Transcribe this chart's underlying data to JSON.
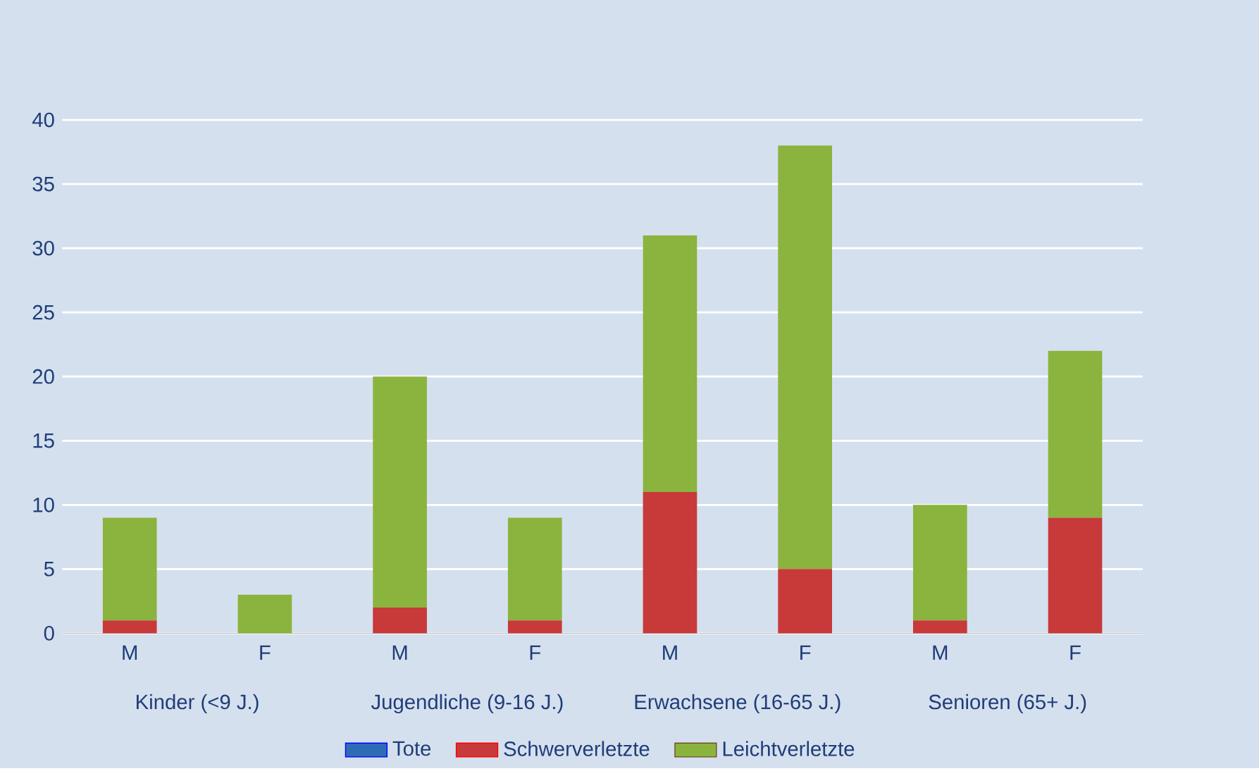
{
  "chart_data": {
    "type": "bar",
    "stacked": true,
    "categories": [
      "M",
      "F",
      "M",
      "F",
      "M",
      "F",
      "M",
      "F"
    ],
    "series": [
      {
        "name": "Tote",
        "color": "#2e6db5",
        "values": [
          0,
          0,
          0,
          0,
          0,
          0,
          0,
          0
        ]
      },
      {
        "name": "Schwerverletzte",
        "color": "#c8393a",
        "values": [
          1,
          0,
          2,
          1,
          11,
          5,
          1,
          9
        ]
      },
      {
        "name": "Leichtverletzte",
        "color": "#8ab43e",
        "values": [
          8,
          3,
          18,
          8,
          20,
          33,
          9,
          13
        ]
      }
    ],
    "annotations": [
      "Kinder (<9 J.)",
      "Jugendliche (9-16 J.)",
      "Erwachsene (16-65 J.)",
      "Senioren (65+ J.)"
    ],
    "ylim": [
      0,
      40
    ],
    "yticks": [
      0,
      5,
      10,
      15,
      20,
      25,
      30,
      35,
      40
    ],
    "grid": "y",
    "legend": "bottom"
  }
}
